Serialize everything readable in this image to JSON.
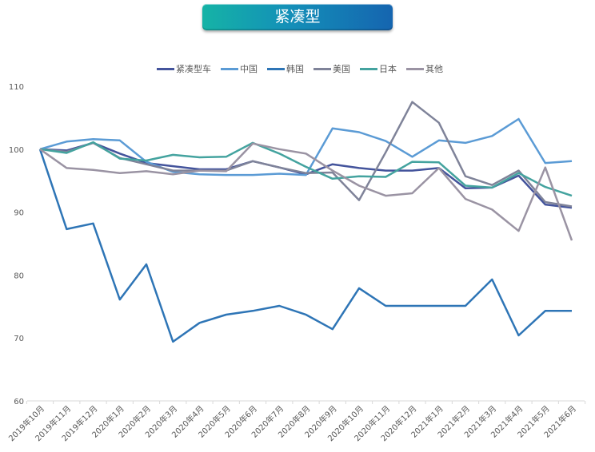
{
  "title": "紧凑型",
  "legend": [
    {
      "name": "紧凑型车",
      "color": "#44549c"
    },
    {
      "name": "中国",
      "color": "#5b9bd5"
    },
    {
      "name": "韩国",
      "color": "#2e75b6"
    },
    {
      "name": "美国",
      "color": "#7f8399"
    },
    {
      "name": "日本",
      "color": "#44a39f"
    },
    {
      "name": "其他",
      "color": "#9a93a3"
    }
  ],
  "chart_data": {
    "type": "line",
    "title": "紧凑型",
    "xlabel": "",
    "ylabel": "",
    "ylim": [
      60,
      110
    ],
    "yticks": [
      60,
      70,
      80,
      90,
      100,
      110
    ],
    "grid": false,
    "legend_position": "top",
    "categories": [
      "2019年10月",
      "2019年11月",
      "2019年12月",
      "2020年1月",
      "2020年2月",
      "2020年3月",
      "2020年4月",
      "2020年5月",
      "2020年6月",
      "2020年7月",
      "2020年8月",
      "2020年9月",
      "2020年10月",
      "2020年11月",
      "2020年12月",
      "2021年1月",
      "2021年2月",
      "2021年3月",
      "2021年4月",
      "2021年5月",
      "2021年6月"
    ],
    "series": [
      {
        "name": "紧凑型车",
        "color": "#44549c",
        "values": [
          100,
          99.8,
          101.0,
          99.3,
          97.8,
          97.3,
          96.8,
          96.8,
          98.1,
          97.1,
          96.0,
          97.6,
          97.0,
          96.6,
          96.6,
          97.0,
          93.8,
          93.9,
          95.8,
          91.2,
          90.7
        ]
      },
      {
        "name": "中国",
        "color": "#5b9bd5",
        "values": [
          100,
          101.2,
          101.6,
          101.4,
          98.0,
          96.4,
          96.0,
          95.9,
          95.9,
          96.1,
          95.9,
          103.3,
          102.7,
          101.3,
          98.8,
          101.4,
          101.0,
          102.1,
          104.8,
          97.8,
          98.1
        ]
      },
      {
        "name": "韩国",
        "color": "#2e75b6",
        "values": [
          100,
          87.3,
          88.2,
          76.1,
          81.7,
          69.4,
          72.4,
          73.7,
          74.3,
          75.1,
          73.7,
          71.4,
          77.9,
          75.1,
          75.1,
          75.1,
          75.1,
          79.3,
          70.4,
          74.3,
          74.3
        ]
      },
      {
        "name": "美国",
        "color": "#7f8399",
        "values": [
          100,
          99.6,
          101.0,
          98.6,
          97.6,
          96.6,
          96.6,
          96.6,
          98.1,
          97.1,
          96.2,
          96.3,
          91.9,
          99.5,
          107.5,
          104.2,
          95.7,
          94.3,
          96.6,
          91.6,
          90.9
        ]
      },
      {
        "name": "日本",
        "color": "#44a39f",
        "values": [
          100,
          99.4,
          101.1,
          98.5,
          98.2,
          99.1,
          98.7,
          98.8,
          101.0,
          99.3,
          97.2,
          95.3,
          95.7,
          95.6,
          98.0,
          97.9,
          94.2,
          93.9,
          96.2,
          94.0,
          92.6
        ]
      },
      {
        "name": "其他",
        "color": "#9a93a3",
        "values": [
          100,
          97.0,
          96.7,
          96.2,
          96.5,
          96.0,
          96.6,
          96.5,
          100.9,
          100.0,
          99.3,
          96.6,
          94.2,
          92.6,
          93.0,
          97.0,
          92.1,
          90.4,
          87.0,
          97.1,
          85.5
        ]
      }
    ]
  }
}
